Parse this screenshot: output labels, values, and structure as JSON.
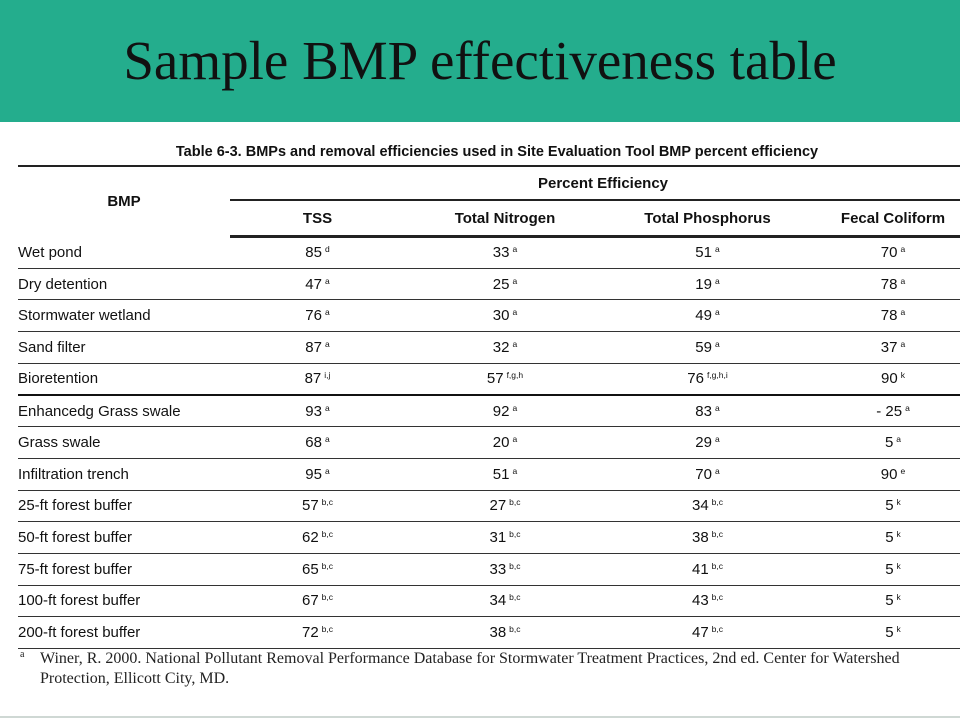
{
  "slide": {
    "title": "Sample BMP effectiveness table"
  },
  "table": {
    "caption": "Table 6-3.  BMPs and removal efficiencies used in Site Evaluation Tool BMP percent efficiency",
    "bmp_header": "BMP",
    "group_header": "Percent Efficiency",
    "columns": [
      "TSS",
      "Total Nitrogen",
      "Total Phosphorus",
      "Fecal Coliform"
    ],
    "rows": [
      {
        "name": "Wet pond",
        "tss": "85",
        "tss_ref": "d",
        "tn": "33",
        "tn_ref": "a",
        "tp": "51",
        "tp_ref": "a",
        "fc": "70",
        "fc_ref": "a"
      },
      {
        "name": "Dry detention",
        "tss": "47",
        "tss_ref": "a",
        "tn": "25",
        "tn_ref": "a",
        "tp": "19",
        "tp_ref": "a",
        "fc": "78",
        "fc_ref": "a"
      },
      {
        "name": "Stormwater wetland",
        "tss": "76",
        "tss_ref": "a",
        "tn": "30",
        "tn_ref": "a",
        "tp": "49",
        "tp_ref": "a",
        "fc": "78",
        "fc_ref": "a"
      },
      {
        "name": "Sand filter",
        "tss": "87",
        "tss_ref": "a",
        "tn": "32",
        "tn_ref": "a",
        "tp": "59",
        "tp_ref": "a",
        "fc": "37",
        "fc_ref": "a"
      },
      {
        "name": "Bioretention",
        "tss": "87",
        "tss_ref": "i,j",
        "tn": "57",
        "tn_ref": "f,g,h",
        "tp": "76",
        "tp_ref": "f,g,h,i",
        "fc": "90",
        "fc_ref": "k"
      },
      {
        "name": "Enhancedg Grass swale",
        "tss": "93",
        "tss_ref": "a",
        "tn": "92",
        "tn_ref": "a",
        "tp": "83",
        "tp_ref": "a",
        "fc": "- 25",
        "fc_ref": "a"
      },
      {
        "name": "Grass swale",
        "tss": "68",
        "tss_ref": "a",
        "tn": "20",
        "tn_ref": "a",
        "tp": "29",
        "tp_ref": "a",
        "fc": "5",
        "fc_ref": "a"
      },
      {
        "name": "Infiltration trench",
        "tss": "95",
        "tss_ref": "a",
        "tn": "51",
        "tn_ref": "a",
        "tp": "70",
        "tp_ref": "a",
        "fc": "90",
        "fc_ref": "e"
      },
      {
        "name": "25-ft  forest buffer",
        "tss": "57",
        "tss_ref": "b,c",
        "tn": "27",
        "tn_ref": "b,c",
        "tp": "34",
        "tp_ref": "b,c",
        "fc": "5",
        "fc_ref": "k"
      },
      {
        "name": "50-ft  forest buffer",
        "tss": "62",
        "tss_ref": "b,c",
        "tn": "31",
        "tn_ref": "b,c",
        "tp": "38",
        "tp_ref": "b,c",
        "fc": "5",
        "fc_ref": "k"
      },
      {
        "name": "75-ft  forest buffer",
        "tss": "65",
        "tss_ref": "b,c",
        "tn": "33",
        "tn_ref": "b,c",
        "tp": "41",
        "tp_ref": "b,c",
        "fc": "5",
        "fc_ref": "k"
      },
      {
        "name": "100-ft  forest buffer",
        "tss": "67",
        "tss_ref": "b,c",
        "tn": "34",
        "tn_ref": "b,c",
        "tp": "43",
        "tp_ref": "b,c",
        "fc": "5",
        "fc_ref": "k"
      },
      {
        "name": "200-ft  forest buffer",
        "tss": "72",
        "tss_ref": "b,c",
        "tn": "38",
        "tn_ref": "b,c",
        "tp": "47",
        "tp_ref": "b,c",
        "fc": "5",
        "fc_ref": "k"
      }
    ]
  },
  "footnote": {
    "mark": "a",
    "text": "Winer, R. 2000. National Pollutant Removal Performance Database for Stormwater Treatment Practices, 2nd ed. Center for Watershed Protection,  Ellicott City, MD."
  },
  "colors": {
    "title_band": "#24ad8d",
    "title_text": "#111111"
  }
}
